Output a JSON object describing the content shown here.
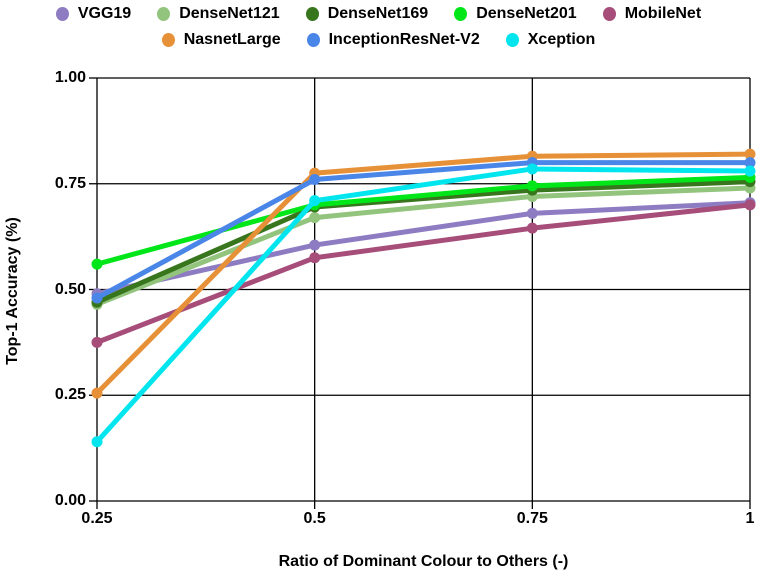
{
  "chart_data": {
    "type": "line",
    "title": "",
    "xlabel": "Ratio of Dominant Colour to Others (-)",
    "ylabel": "Top-1 Accuracy  (%)",
    "x": [
      0.25,
      0.5,
      0.75,
      1
    ],
    "x_tick_labels": [
      "0.25",
      "0.5",
      "0.75",
      "1"
    ],
    "y_ticks": [
      0,
      0.25,
      0.5,
      0.75,
      1
    ],
    "y_tick_labels": [
      "0.00",
      "0.25",
      "0.50",
      "0.75",
      "1.00"
    ],
    "xlim": [
      0.25,
      1
    ],
    "ylim": [
      0,
      1
    ],
    "grid": true,
    "legend_position": "top",
    "legend_row_split": 5,
    "axis_color": "#000000",
    "series": [
      {
        "name": "VGG19",
        "color": "#8e7cc3",
        "values": [
          0.49,
          0.605,
          0.68,
          0.705
        ]
      },
      {
        "name": "DenseNet121",
        "color": "#93c47d",
        "values": [
          0.465,
          0.67,
          0.72,
          0.74
        ]
      },
      {
        "name": "DenseNet169",
        "color": "#38761d",
        "values": [
          0.47,
          0.695,
          0.735,
          0.755
        ]
      },
      {
        "name": "DenseNet201",
        "color": "#00e619",
        "values": [
          0.56,
          0.7,
          0.745,
          0.765
        ]
      },
      {
        "name": "MobileNet",
        "color": "#a64d79",
        "values": [
          0.375,
          0.575,
          0.645,
          0.7
        ]
      },
      {
        "name": "NasnetLarge",
        "color": "#e69138",
        "values": [
          0.255,
          0.775,
          0.815,
          0.82
        ]
      },
      {
        "name": "InceptionResNet-V2",
        "color": "#4a86e8",
        "values": [
          0.48,
          0.76,
          0.8,
          0.8
        ]
      },
      {
        "name": "Xception",
        "color": "#00e5ee",
        "values": [
          0.14,
          0.71,
          0.785,
          0.78
        ]
      }
    ]
  }
}
